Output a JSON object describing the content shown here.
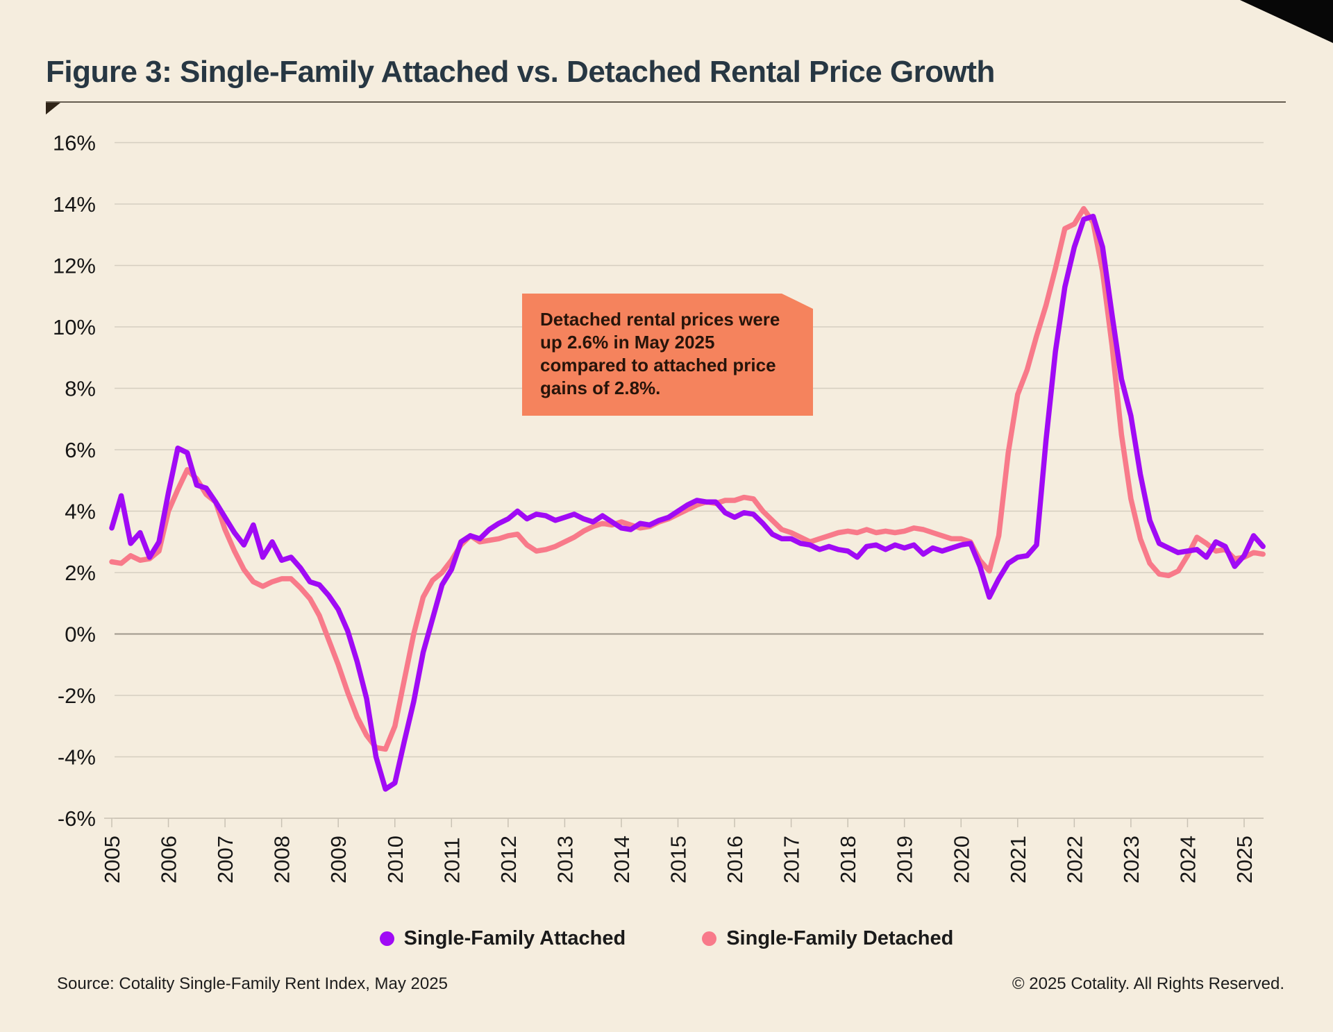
{
  "header": {
    "title": "Figure 3: Single-Family Attached vs. Detached Rental Price Growth"
  },
  "annotation": {
    "text": "Detached rental prices were up 2.6% in May 2025 compared to attached price gains of 2.8%."
  },
  "footer": {
    "source": "Source: Cotality Single-Family Rent Index, May 2025",
    "copyright": "© 2025 Cotality. All Rights Reserved."
  },
  "colors": {
    "background": "#F5EDDE",
    "title_text": "#273743",
    "corner_cut": "#070707",
    "annotation_bg": "#F5835D",
    "annotation_text": "#27140A",
    "gridline": "#D5CEC0",
    "zero_line": "#9E978B",
    "axis_text": "#161616",
    "attached_line": "#A00AF5",
    "detached_line": "#F87A8A"
  },
  "chart_data": {
    "type": "line",
    "title": "Figure 3: Single-Family Attached vs. Detached Rental Price Growth",
    "xlabel": "",
    "ylabel": "",
    "grid": true,
    "legend_position": "bottom",
    "ylim": [
      -6,
      16
    ],
    "y_tick_values": [
      16,
      14,
      12,
      10,
      8,
      6,
      4,
      2,
      0,
      -2,
      -4,
      -6
    ],
    "y_tick_labels": [
      "16%",
      "14%",
      "12%",
      "10%",
      "8%",
      "6%",
      "4%",
      "2%",
      "0%",
      "-2%",
      "-4%",
      "-6%"
    ],
    "x_ticks": [
      2005,
      2006,
      2007,
      2008,
      2009,
      2010,
      2011,
      2012,
      2013,
      2014,
      2015,
      2016,
      2017,
      2018,
      2019,
      2020,
      2021,
      2022,
      2023,
      2024,
      2025
    ],
    "x_start": 2005,
    "x_step": 0.1666667,
    "x_unit": "year (monthly year-over-year rent growth, sampled bimonthly)",
    "series": [
      {
        "name": "Single-Family Attached",
        "color": "#A00AF5",
        "values": [
          3.45,
          4.5,
          2.95,
          3.3,
          2.5,
          3.0,
          4.6,
          6.05,
          5.9,
          4.85,
          4.75,
          4.3,
          3.8,
          3.3,
          2.9,
          3.55,
          2.5,
          3.0,
          2.4,
          2.5,
          2.15,
          1.7,
          1.6,
          1.25,
          0.8,
          0.1,
          -0.9,
          -2.1,
          -4.0,
          -5.05,
          -4.85,
          -3.5,
          -2.2,
          -0.6,
          0.5,
          1.6,
          2.1,
          3.0,
          3.2,
          3.1,
          3.4,
          3.6,
          3.75,
          4.0,
          3.75,
          3.9,
          3.85,
          3.7,
          3.8,
          3.9,
          3.75,
          3.65,
          3.85,
          3.65,
          3.45,
          3.4,
          3.6,
          3.55,
          3.7,
          3.8,
          4.0,
          4.2,
          4.35,
          4.3,
          4.3,
          3.95,
          3.8,
          3.95,
          3.9,
          3.6,
          3.25,
          3.1,
          3.1,
          2.95,
          2.9,
          2.75,
          2.85,
          2.75,
          2.7,
          2.5,
          2.85,
          2.9,
          2.75,
          2.9,
          2.8,
          2.9,
          2.6,
          2.8,
          2.7,
          2.8,
          2.9,
          2.95,
          2.2,
          1.2,
          1.8,
          2.3,
          2.5,
          2.55,
          2.9,
          6.3,
          9.2,
          11.3,
          12.6,
          13.5,
          13.6,
          12.6,
          10.4,
          8.3,
          7.1,
          5.2,
          3.7,
          2.95,
          2.8,
          2.65,
          2.7,
          2.75,
          2.5,
          3.0,
          2.85,
          2.2,
          2.55,
          3.2,
          2.85
        ]
      },
      {
        "name": "Single-Family Detached",
        "color": "#F87A8A",
        "values": [
          2.35,
          2.3,
          2.55,
          2.4,
          2.45,
          2.7,
          4.0,
          4.7,
          5.35,
          5.05,
          4.55,
          4.3,
          3.4,
          2.7,
          2.1,
          1.7,
          1.55,
          1.7,
          1.8,
          1.8,
          1.5,
          1.15,
          0.6,
          -0.2,
          -1.0,
          -1.9,
          -2.7,
          -3.3,
          -3.7,
          -3.75,
          -3.0,
          -1.5,
          0.0,
          1.2,
          1.75,
          2.0,
          2.4,
          2.9,
          3.2,
          3.0,
          3.05,
          3.1,
          3.2,
          3.25,
          2.9,
          2.7,
          2.75,
          2.85,
          3.0,
          3.15,
          3.35,
          3.5,
          3.6,
          3.55,
          3.65,
          3.55,
          3.45,
          3.5,
          3.65,
          3.75,
          3.9,
          4.05,
          4.2,
          4.3,
          4.25,
          4.35,
          4.35,
          4.45,
          4.4,
          4.0,
          3.7,
          3.4,
          3.3,
          3.15,
          3.0,
          3.1,
          3.2,
          3.3,
          3.35,
          3.3,
          3.4,
          3.3,
          3.35,
          3.3,
          3.35,
          3.45,
          3.4,
          3.3,
          3.2,
          3.1,
          3.1,
          3.0,
          2.4,
          2.05,
          3.2,
          5.9,
          7.8,
          8.6,
          9.7,
          10.7,
          11.9,
          13.2,
          13.35,
          13.85,
          13.4,
          11.8,
          9.4,
          6.5,
          4.4,
          3.1,
          2.3,
          1.95,
          1.9,
          2.05,
          2.55,
          3.15,
          2.95,
          2.7,
          2.75,
          2.45,
          2.5,
          2.65,
          2.6
        ]
      }
    ]
  }
}
